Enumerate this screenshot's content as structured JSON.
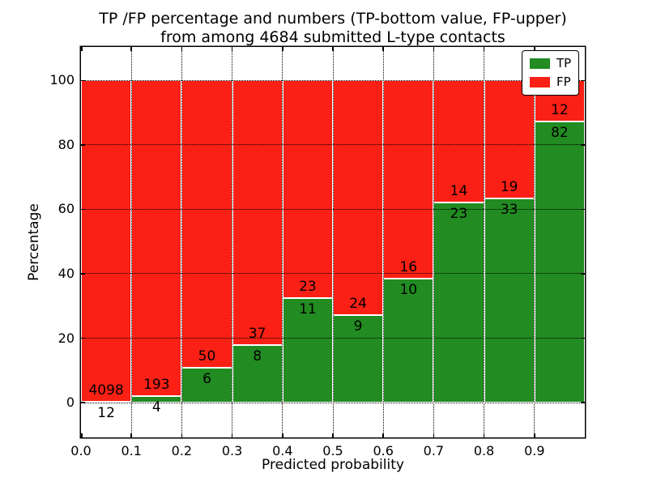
{
  "title": {
    "line1": "TP /FP percentage and numbers (TP-bottom value, FP-upper)",
    "line2": "from among 4684 submitted L-type contacts"
  },
  "chart_data": {
    "type": "bar",
    "stacked": true,
    "orientation": "vertical",
    "title": "TP /FP percentage and numbers (TP-bottom value, FP-upper)\nfrom among 4684 submitted L-type contacts",
    "xlabel": "Predicted probability",
    "ylabel": "Percentage",
    "total_contacts": 4684,
    "bin_edges": [
      0.0,
      0.1,
      0.2,
      0.3,
      0.4,
      0.5,
      0.6,
      0.7,
      0.8,
      0.9,
      1.0
    ],
    "categories": [
      "0.0",
      "0.1",
      "0.2",
      "0.3",
      "0.4",
      "0.5",
      "0.6",
      "0.7",
      "0.8",
      "0.9"
    ],
    "series": [
      {
        "name": "TP",
        "color": "#228b22",
        "counts": [
          12,
          4,
          6,
          8,
          11,
          9,
          10,
          23,
          33,
          82
        ],
        "percent": [
          0.29,
          2.03,
          10.71,
          17.78,
          32.35,
          27.27,
          38.46,
          62.16,
          63.46,
          87.23
        ]
      },
      {
        "name": "FP",
        "color": "#fb2015",
        "counts": [
          4098,
          193,
          50,
          37,
          23,
          24,
          16,
          14,
          19,
          12
        ],
        "percent": [
          99.71,
          97.97,
          89.29,
          82.22,
          67.65,
          72.73,
          61.54,
          37.84,
          36.54,
          12.77
        ]
      }
    ],
    "x_tick_labels": [
      "0.0",
      "0.1",
      "0.2",
      "0.3",
      "0.4",
      "0.5",
      "0.6",
      "0.7",
      "0.8",
      "0.9"
    ],
    "y_ticks": [
      0,
      20,
      40,
      60,
      80,
      100
    ],
    "y_tick_labels": [
      "0",
      "20",
      "40",
      "60",
      "80",
      "100"
    ],
    "xlim": [
      0.0,
      1.0
    ],
    "ylim": [
      -10.8,
      110.4
    ],
    "grid": true,
    "grid_style": "dotted",
    "bar_edge_color": "#ffffff",
    "legend": {
      "position": "upper right",
      "entries": [
        {
          "label": "TP",
          "color": "#228b22"
        },
        {
          "label": "FP",
          "color": "#fb2015"
        }
      ]
    }
  }
}
